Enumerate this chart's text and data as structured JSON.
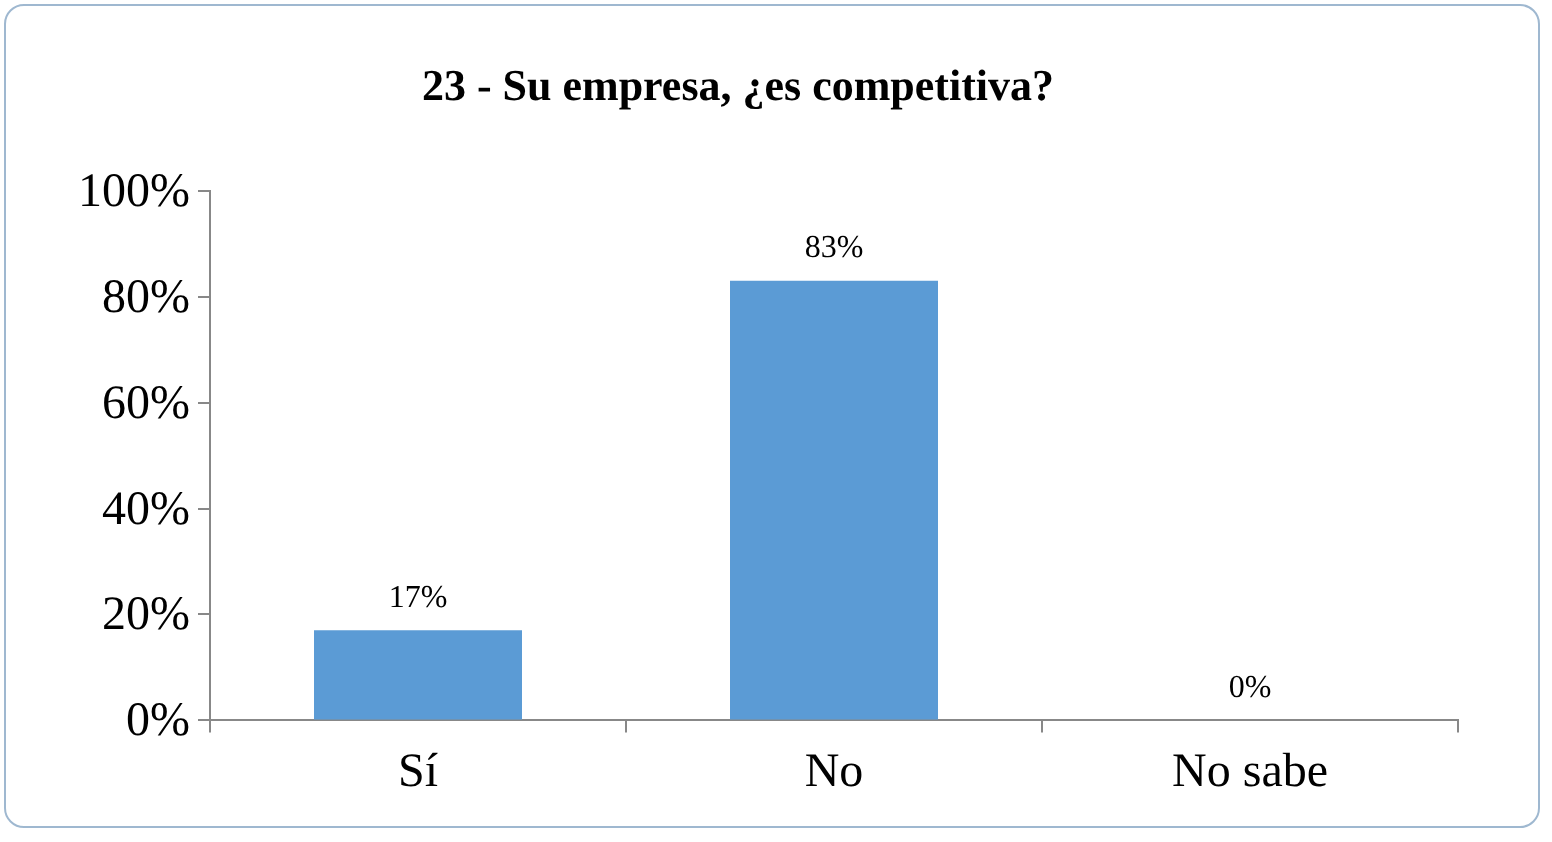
{
  "chart_data": {
    "type": "bar",
    "title": "23 - Su empresa, ¿es competitiva?",
    "categories": [
      "Sí",
      "No",
      "No sabe"
    ],
    "values": [
      17,
      83,
      0
    ],
    "value_labels": [
      "17%",
      "83%",
      "0%"
    ],
    "color": "#5b9bd5",
    "ylim": [
      0,
      100
    ],
    "yticks": [
      {
        "value": 0,
        "label": "0%"
      },
      {
        "value": 20,
        "label": "20%"
      },
      {
        "value": 40,
        "label": "40%"
      },
      {
        "value": 60,
        "label": "60%"
      },
      {
        "value": 80,
        "label": "80%"
      },
      {
        "value": 100,
        "label": "100%"
      }
    ],
    "grid": false,
    "legend": false
  }
}
